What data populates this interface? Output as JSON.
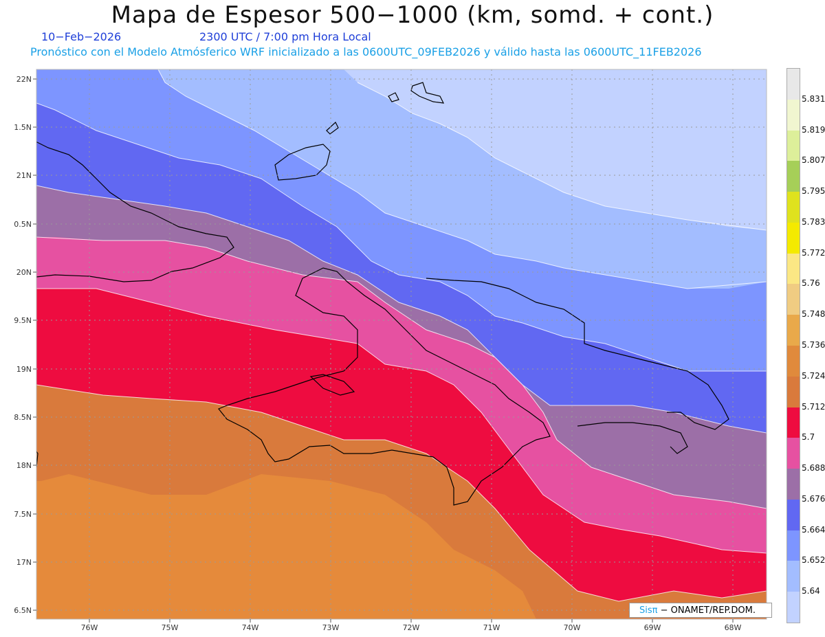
{
  "header": {
    "title": "Mapa de Espesor 500−1000 (km, somd. + cont.)",
    "date": "10−Feb−2026",
    "time": "2300 UTC / 7:00 pm Hora Local",
    "forecast": "Pronóstico con el Modelo Atmósferico WRF inicializado a las 0600UTC_09FEB2026 y válido hasta las  0600UTC_11FEB2026"
  },
  "axes": {
    "lat_labels": [
      "22N",
      "1.5N",
      "21N",
      "0.5N",
      "20N",
      "9.5N",
      "19N",
      "8.5N",
      "18N",
      "7.5N",
      "17N",
      "6.5N"
    ],
    "lon_labels": [
      "76W",
      "75W",
      "74W",
      "73W",
      "72W",
      "71W",
      "70W",
      "69W",
      "68W"
    ]
  },
  "colorbar": {
    "labels": [
      "5.831",
      "5.819",
      "5.807",
      "5.795",
      "5.783",
      "5.772",
      "5.76",
      "5.748",
      "5.736",
      "5.724",
      "5.712",
      "5.7",
      "5.688",
      "5.676",
      "5.664",
      "5.652",
      "5.64"
    ],
    "colors": [
      "#e8e8e8",
      "#f1f6d0",
      "#ddef9a",
      "#a6cf58",
      "#dfe21e",
      "#f4ea00",
      "#fbe784",
      "#f0cc82",
      "#e9a94a",
      "#e08a3c",
      "#d97a3c",
      "#ee0c40",
      "#e651a1",
      "#9c6fa7",
      "#6168f2",
      "#7d95ff",
      "#a3bdff",
      "#c2d2ff"
    ]
  },
  "credit": {
    "brand": "Sisπ",
    "text": " − ONAMET/REP.DOM."
  }
}
